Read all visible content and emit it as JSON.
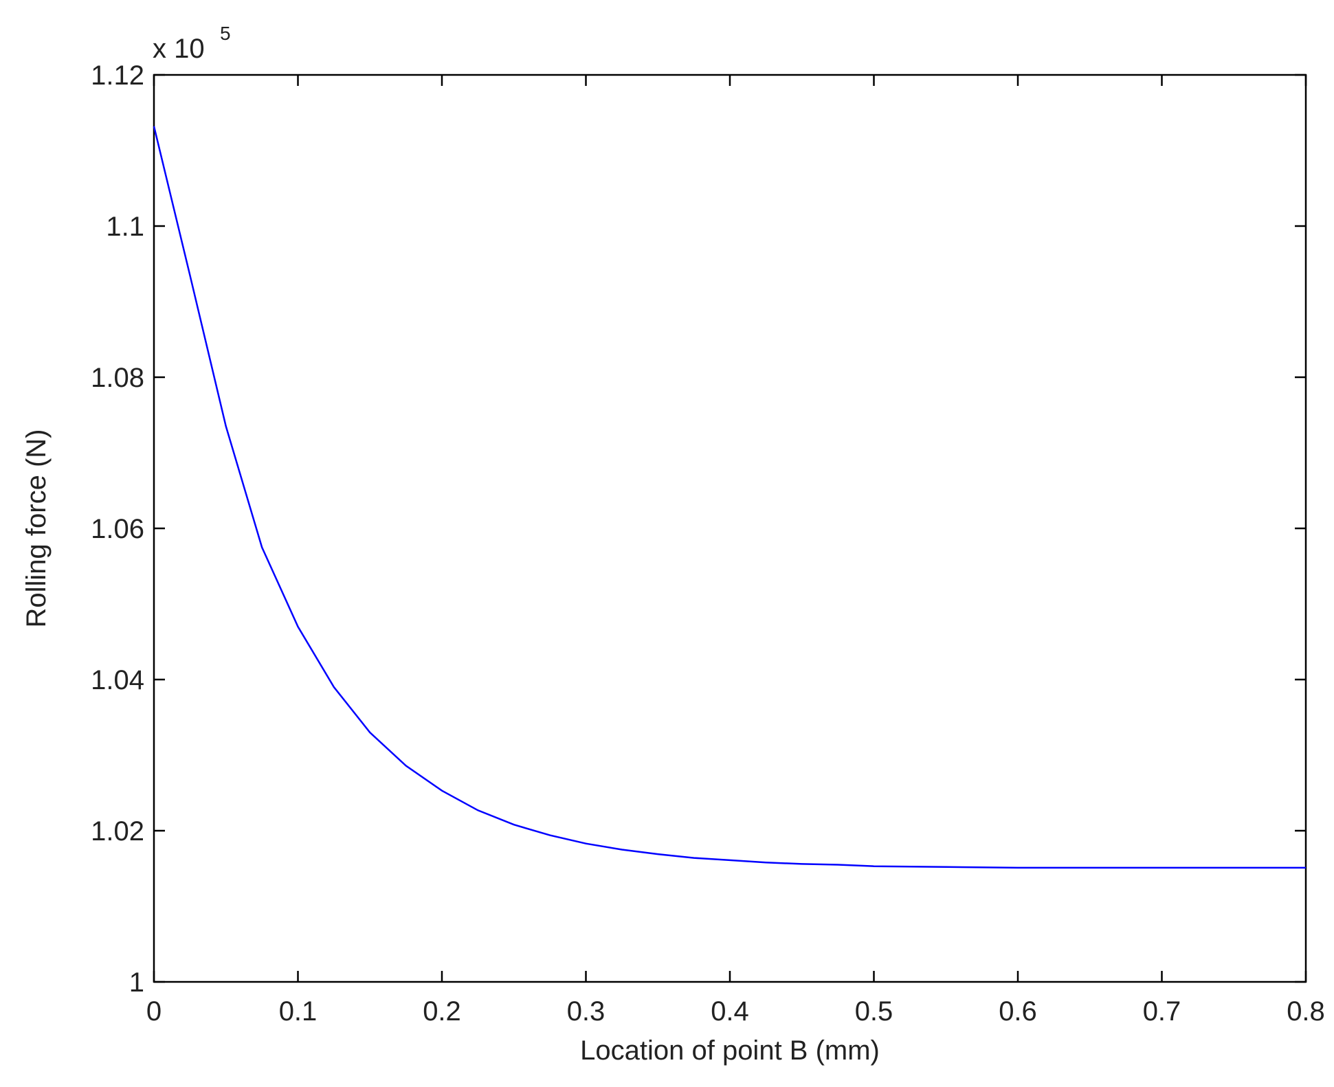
{
  "chart_data": {
    "type": "line",
    "x_label": "Location of point B (mm)",
    "y_label": "Rolling force (N)",
    "y_multiplier": "x 10",
    "y_multiplier_exponent": "5",
    "x": [
      0,
      0.025,
      0.05,
      0.075,
      0.1,
      0.125,
      0.15,
      0.175,
      0.2,
      0.225,
      0.25,
      0.275,
      0.3,
      0.325,
      0.35,
      0.375,
      0.4,
      0.425,
      0.45,
      0.475,
      0.5,
      0.55,
      0.6,
      0.65,
      0.7,
      0.75,
      0.8
    ],
    "series": [
      {
        "color": "#0000ff",
        "values": [
          1.1132,
          1.0935,
          1.0735,
          1.0575,
          1.047,
          1.039,
          1.033,
          1.0286,
          1.0253,
          1.0227,
          1.0208,
          1.0194,
          1.0183,
          1.0175,
          1.0169,
          1.0164,
          1.0161,
          1.0158,
          1.0156,
          1.0155,
          1.0153,
          1.0152,
          1.0151,
          1.0151,
          1.0151,
          1.0151,
          1.0151
        ]
      }
    ],
    "xlim": [
      0,
      0.8
    ],
    "ylim": [
      1,
      1.12
    ],
    "xticks": [
      0,
      0.1,
      0.2,
      0.3,
      0.4,
      0.5,
      0.6,
      0.7,
      0.8
    ],
    "yticks": [
      1,
      1.02,
      1.04,
      1.06,
      1.08,
      1.1,
      1.12
    ],
    "grid": false
  }
}
